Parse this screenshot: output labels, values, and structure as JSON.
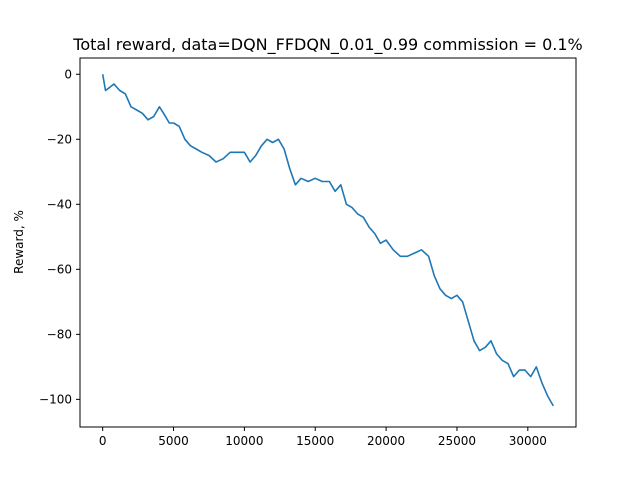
{
  "chart_data": {
    "type": "line",
    "title": "Total reward, data=DQN_FFDQN_0.01_0.99 commission = 0.1%",
    "xlabel": "",
    "ylabel": "Reward, %",
    "xlim": [
      -1600,
      33400
    ],
    "ylim": [
      -108.5,
      5
    ],
    "xticks": [
      0,
      5000,
      10000,
      15000,
      20000,
      25000,
      30000
    ],
    "yticks": [
      0,
      -20,
      -40,
      -60,
      -80,
      -100
    ],
    "xtick_labels": [
      "0",
      "5000",
      "10000",
      "15000",
      "20000",
      "25000",
      "30000"
    ],
    "ytick_labels": [
      "0",
      "−20",
      "−40",
      "−60",
      "−80",
      "−100"
    ],
    "grid": false,
    "series": [
      {
        "color": "#1f77b4",
        "x": [
          0,
          200,
          500,
          800,
          1200,
          1600,
          2000,
          2400,
          2800,
          3200,
          3600,
          4000,
          4300,
          4700,
          5000,
          5400,
          5800,
          6200,
          6600,
          7000,
          7500,
          8000,
          8500,
          9000,
          9500,
          10000,
          10400,
          10800,
          11200,
          11600,
          12000,
          12400,
          12800,
          13200,
          13600,
          14000,
          14500,
          15000,
          15500,
          16000,
          16400,
          16800,
          17200,
          17600,
          18000,
          18400,
          18800,
          19200,
          19600,
          20000,
          20500,
          21000,
          21500,
          22000,
          22500,
          23000,
          23400,
          23800,
          24200,
          24600,
          25000,
          25400,
          25800,
          26200,
          26600,
          27000,
          27400,
          27800,
          28200,
          28600,
          29000,
          29400,
          29800,
          30200,
          30600,
          31000,
          31400,
          31800
        ],
        "values": [
          0,
          -5,
          -4,
          -3,
          -5,
          -6,
          -10,
          -11,
          -12,
          -14,
          -13,
          -10,
          -12,
          -15,
          -15,
          -16,
          -20,
          -22,
          -23,
          -24,
          -25,
          -27,
          -26,
          -24,
          -24,
          -24,
          -27,
          -25,
          -22,
          -20,
          -21,
          -20,
          -23,
          -29,
          -34,
          -32,
          -33,
          -32,
          -33,
          -33,
          -36,
          -34,
          -40,
          -41,
          -43,
          -44,
          -47,
          -49,
          -52,
          -51,
          -54,
          -56,
          -56,
          -55,
          -54,
          -56,
          -62,
          -66,
          -68,
          -69,
          -68,
          -70,
          -76,
          -82,
          -85,
          -84,
          -82,
          -86,
          -88,
          -89,
          -93,
          -91,
          -91,
          -93,
          -90,
          -95,
          -99,
          -102
        ]
      }
    ]
  }
}
